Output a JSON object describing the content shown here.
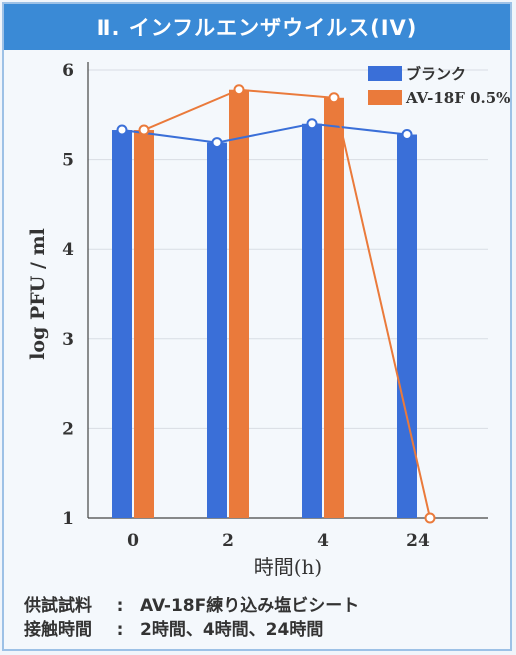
{
  "title": "Ⅱ. インフルエンザウイルス(IV)",
  "chart_data": {
    "type": "bar",
    "categories": [
      "0",
      "2",
      "4",
      "24"
    ],
    "xlabel": "時間(h)",
    "ylabel": "log PFU / ml",
    "ylim": [
      1,
      6
    ],
    "yticks": [
      1,
      2,
      3,
      4,
      5,
      6
    ],
    "grid": true,
    "legend_position": "top-right",
    "overlay": "line with circle markers connecting each series",
    "series": [
      {
        "name": "ブランク",
        "color": "#3a6fd8",
        "values": [
          5.33,
          5.19,
          5.4,
          5.28
        ]
      },
      {
        "name": "AV-18F 0.5%",
        "color": "#ea7a3b",
        "values": [
          5.33,
          5.78,
          5.69,
          1.0
        ]
      }
    ]
  },
  "notes": [
    {
      "label": "供試試料",
      "sep": ":",
      "value": "AV-18F練り込み塩ビシート"
    },
    {
      "label": "接触時間",
      "sep": ":",
      "value": "2時間、4時間、24時間"
    }
  ]
}
